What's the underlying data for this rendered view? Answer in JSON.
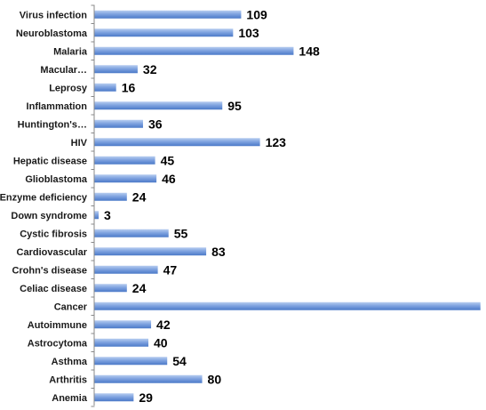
{
  "chart_data": {
    "type": "bar",
    "orientation": "horizontal",
    "title": "",
    "xlabel": "",
    "ylabel": "",
    "categories": [
      "Virus infection",
      "Neuroblastoma",
      "Malaria",
      "Macular…",
      "Leprosy",
      "Inflammation",
      "Huntington's…",
      "HIV",
      "Hepatic disease",
      "Glioblastoma",
      "Enzyme deficiency",
      "Down syndrome",
      "Cystic fibrosis",
      "Cardiovascular",
      "Crohn's disease",
      "Celiac disease",
      "Cancer",
      "Autoimmune",
      "Astrocytoma",
      "Asthma",
      "Arthritis",
      "Anemia"
    ],
    "values": [
      109,
      103,
      148,
      32,
      16,
      95,
      36,
      123,
      45,
      46,
      24,
      3,
      55,
      83,
      47,
      24,
      287,
      42,
      40,
      54,
      80,
      29
    ],
    "xlim": [
      0,
      330
    ],
    "grid": false,
    "legend": "none",
    "colors": {
      "bar_light": "#b7cdf0",
      "bar_dark": "#4a79c8",
      "axis": "#888888"
    }
  }
}
